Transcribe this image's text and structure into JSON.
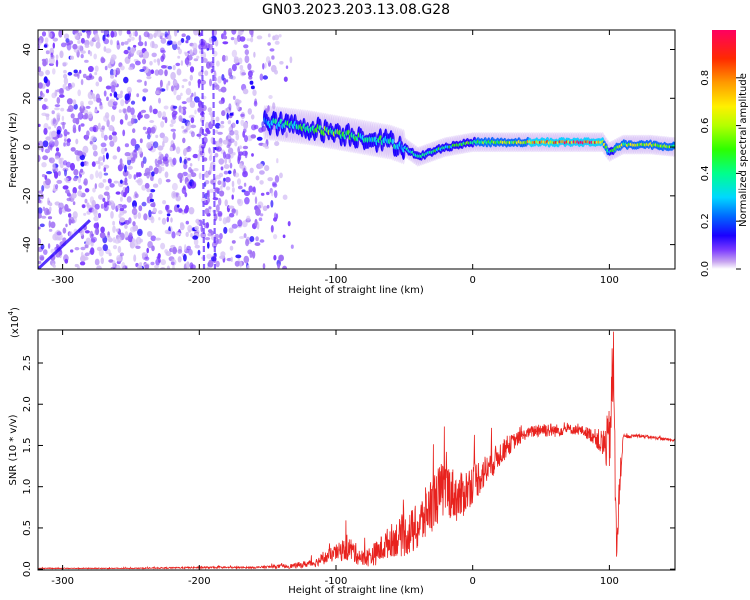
{
  "title": "GN03.2023.203.13.08.G28",
  "chart_data": [
    {
      "type": "heatmap",
      "xlabel": "Height of straight line (km)",
      "ylabel": "Frequency (Hz)",
      "xlim": [
        -318,
        148
      ],
      "ylim": [
        -50,
        48
      ],
      "xticks": [
        -300,
        -200,
        -100,
        0,
        100
      ],
      "yticks": [
        -40,
        -20,
        0,
        20,
        40
      ],
      "grid": false,
      "colorbar": {
        "label": "Normalized spectral amplitude",
        "range": [
          0.0,
          1.0
        ],
        "ticks": [
          0.0,
          0.2,
          0.4,
          0.6,
          0.8
        ],
        "colormap": [
          "#c9a7f0",
          "#7c3bff",
          "#1a00ff",
          "#0068ff",
          "#00d8ff",
          "#00ff8c",
          "#2dff00",
          "#b4ff00",
          "#fff000",
          "#ff9a00",
          "#ff2a00",
          "#ff0060"
        ]
      },
      "ridge": {
        "x": [
          -150,
          -120,
          -100,
          -80,
          -60,
          -50,
          -40,
          -20,
          0,
          20,
          40,
          60,
          80,
          95,
          100,
          110,
          130,
          148
        ],
        "y": [
          10,
          8,
          6,
          4,
          2,
          0,
          -4,
          0,
          2,
          2,
          2,
          2,
          2,
          2,
          -2,
          1,
          1,
          0
        ],
        "peak_amplitude": [
          0.35,
          0.5,
          0.5,
          0.45,
          0.4,
          0.35,
          0.4,
          0.45,
          0.5,
          0.55,
          0.7,
          0.8,
          0.9,
          0.75,
          0.45,
          0.6,
          0.65,
          0.55
        ]
      },
      "noise_region": {
        "x_range": [
          -318,
          -150
        ],
        "y_range": [
          -50,
          48
        ]
      },
      "features": [
        {
          "label": "vertical streak",
          "x": -198
        },
        {
          "label": "vertical streak",
          "x": -190
        },
        {
          "label": "diagonal track",
          "x": [
            -318,
            -280
          ],
          "y": [
            -50,
            -30
          ]
        }
      ]
    },
    {
      "type": "line",
      "xlabel": "Height of straight line (km)",
      "ylabel": "SNR (10 * v/v)",
      "yscale_label": "(x10",
      "yscale_exp": "4",
      "xlim": [
        -318,
        148
      ],
      "ylim": [
        -0.01,
        2.9
      ],
      "xticks": [
        -300,
        -200,
        -100,
        0,
        100
      ],
      "yticks": [
        0.0,
        0.5,
        1.0,
        1.5,
        2.0,
        2.5
      ],
      "grid": false,
      "series": [
        {
          "color": "#e8221e",
          "x": [
            -318,
            -300,
            -250,
            -200,
            -160,
            -130,
            -115,
            -100,
            -90,
            -80,
            -70,
            -60,
            -50,
            -40,
            -30,
            -20,
            -10,
            0,
            10,
            20,
            30,
            40,
            50,
            60,
            70,
            80,
            90,
            95,
            100,
            103,
            105,
            110,
            120,
            130,
            140,
            148
          ],
          "y": [
            0.01,
            0.01,
            0.01,
            0.02,
            0.02,
            0.04,
            0.08,
            0.2,
            0.25,
            0.12,
            0.2,
            0.35,
            0.4,
            0.5,
            0.8,
            1.0,
            0.85,
            1.05,
            1.2,
            1.4,
            1.55,
            1.65,
            1.7,
            1.68,
            1.7,
            1.68,
            1.6,
            1.5,
            1.55,
            2.5,
            0.3,
            1.6,
            1.62,
            1.6,
            1.58,
            1.56
          ],
          "noise": [
            0.005,
            0.005,
            0.005,
            0.01,
            0.01,
            0.03,
            0.05,
            0.1,
            0.15,
            0.1,
            0.15,
            0.2,
            0.25,
            0.3,
            0.35,
            0.35,
            0.3,
            0.25,
            0.2,
            0.15,
            0.1,
            0.06,
            0.1,
            0.08,
            0.06,
            0.06,
            0.1,
            0.2,
            0.4,
            0.6,
            0.4,
            0.02,
            0.02,
            0.02,
            0.015,
            0.015
          ]
        }
      ]
    }
  ]
}
